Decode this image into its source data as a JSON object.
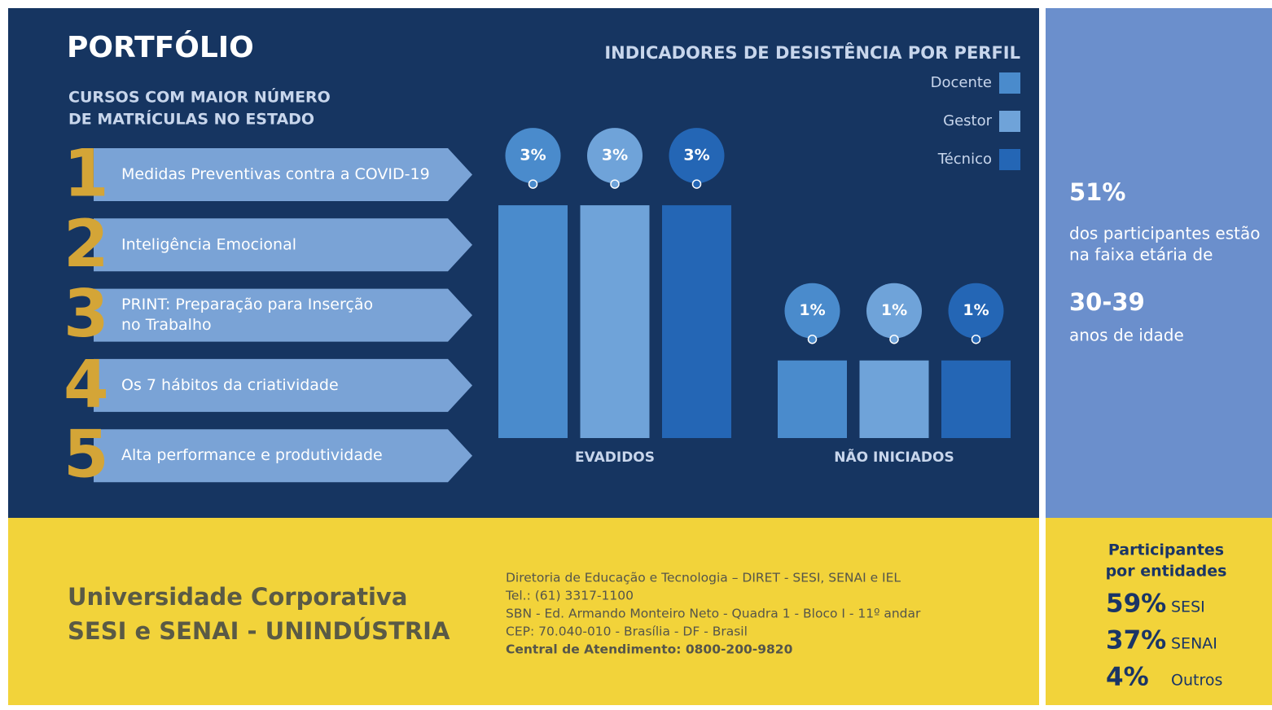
{
  "header": {
    "title": "PORTFÓLIO",
    "subtitle": [
      "CURSOS COM MAIOR NÚMERO",
      "DE MATRÍCULAS NO ESTADO"
    ]
  },
  "courses": [
    {
      "number": "1",
      "lines": [
        "Medidas Preventivas contra a COVID-19"
      ]
    },
    {
      "number": "2",
      "lines": [
        "Inteligência Emocional"
      ]
    },
    {
      "number": "3",
      "lines": [
        "PRINT: Preparação para Inserção",
        "no Trabalho"
      ]
    },
    {
      "number": "4",
      "lines": [
        "Os 7 hábitos da criatividade"
      ]
    },
    {
      "number": "5",
      "lines": [
        "Alta performance e produtividade"
      ]
    }
  ],
  "chart_data": {
    "type": "bar",
    "title": "INDICADORES DE DESISTÊNCIA POR PERFIL",
    "categories": [
      "EVADIDOS",
      "NÃO INICIADOS"
    ],
    "series": [
      {
        "name": "Docente",
        "color": "#4a8bcc",
        "values": [
          3,
          1
        ],
        "value_labels": [
          "3%",
          "1%"
        ]
      },
      {
        "name": "Gestor",
        "color": "#6fa3d9",
        "values": [
          3,
          1
        ],
        "value_labels": [
          "3%",
          "1%"
        ]
      },
      {
        "name": "Técnico",
        "color": "#2466b5",
        "values": [
          3,
          1
        ],
        "value_labels": [
          "3%",
          "1%"
        ]
      }
    ],
    "legend": "upper right"
  },
  "age_panel": {
    "percent": "51%",
    "text": [
      "dos participantes estão",
      "na faixa etária de"
    ],
    "range": "30-39",
    "unit": "anos de idade"
  },
  "footer": {
    "name": [
      "Universidade Corporativa",
      "SESI e SENAI - UNINDÚSTRIA"
    ],
    "address": [
      "Diretoria de Educação e Tecnologia – DIRET - SESI, SENAI e IEL",
      "Tel.: (61) 3317-1100",
      "SBN - Ed. Armando Monteiro Neto - Quadra 1 - Bloco I - 11º andar",
      "CEP: 70.040-010 - Brasília - DF - Brasil",
      "Central de Atendimento: 0800-200-9820"
    ]
  },
  "entities": {
    "title": [
      "Participantes",
      "por entidades"
    ],
    "items": [
      {
        "percent": "59%",
        "name": "SESI"
      },
      {
        "percent": "37%",
        "name": "SENAI"
      },
      {
        "percent": "4%",
        "name": "Outros"
      }
    ]
  }
}
